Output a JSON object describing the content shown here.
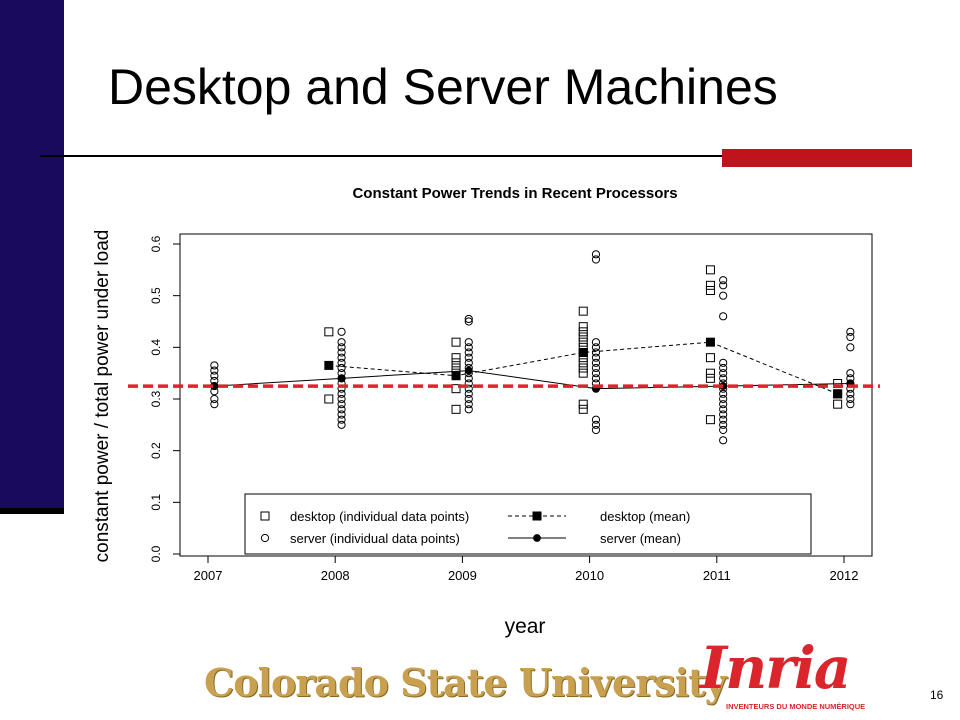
{
  "slide": {
    "title": "Desktop and Server Machines",
    "page_number": "16",
    "accent_color": "#c0141c",
    "sidebar_color": "#1a0a5e"
  },
  "logos": {
    "csu": "Colorado State University",
    "inria": "Inria",
    "inria_tagline": "INVENTEURS DU MONDE NUMÉRIQUE"
  },
  "chart_data": {
    "type": "scatter",
    "title": "Constant Power Trends in Recent Processors",
    "xlabel": "year",
    "ylabel": "constant power / total power under load",
    "xlim": [
      2007,
      2012
    ],
    "ylim": [
      0,
      0.6
    ],
    "x_ticks": [
      "2007",
      "2008",
      "2009",
      "2010",
      "2011",
      "2012"
    ],
    "y_ticks": [
      "0.0",
      "0.1",
      "0.2",
      "0.3",
      "0.4",
      "0.5",
      "0.6"
    ],
    "grid": false,
    "legend_placement": "bottom-center",
    "reference_line": {
      "y": 0.325,
      "color": "#d9252b"
    },
    "series": [
      {
        "name": "desktop (individual data points)",
        "marker": "open-square",
        "points": [
          [
            2007.95,
            0.43
          ],
          [
            2007.95,
            0.3
          ],
          [
            2008.95,
            0.41
          ],
          [
            2008.95,
            0.38
          ],
          [
            2008.95,
            0.37
          ],
          [
            2008.95,
            0.36
          ],
          [
            2008.95,
            0.35
          ],
          [
            2008.95,
            0.32
          ],
          [
            2008.95,
            0.28
          ],
          [
            2009.95,
            0.47
          ],
          [
            2009.95,
            0.44
          ],
          [
            2009.95,
            0.43
          ],
          [
            2009.95,
            0.42
          ],
          [
            2009.95,
            0.41
          ],
          [
            2009.95,
            0.4
          ],
          [
            2009.95,
            0.39
          ],
          [
            2009.95,
            0.38
          ],
          [
            2009.95,
            0.37
          ],
          [
            2009.95,
            0.36
          ],
          [
            2009.95,
            0.35
          ],
          [
            2009.95,
            0.29
          ],
          [
            2009.95,
            0.28
          ],
          [
            2010.95,
            0.55
          ],
          [
            2010.95,
            0.52
          ],
          [
            2010.95,
            0.51
          ],
          [
            2010.95,
            0.38
          ],
          [
            2010.95,
            0.35
          ],
          [
            2010.95,
            0.34
          ],
          [
            2010.95,
            0.26
          ],
          [
            2011.95,
            0.33
          ],
          [
            2011.95,
            0.31
          ],
          [
            2011.95,
            0.29
          ]
        ]
      },
      {
        "name": "server (individual data points)",
        "marker": "open-circle",
        "points": [
          [
            2007.05,
            0.365
          ],
          [
            2007.05,
            0.355
          ],
          [
            2007.05,
            0.345
          ],
          [
            2007.05,
            0.335
          ],
          [
            2007.05,
            0.325
          ],
          [
            2007.05,
            0.315
          ],
          [
            2007.05,
            0.3
          ],
          [
            2007.05,
            0.29
          ],
          [
            2008.05,
            0.43
          ],
          [
            2008.05,
            0.41
          ],
          [
            2008.05,
            0.4
          ],
          [
            2008.05,
            0.39
          ],
          [
            2008.05,
            0.38
          ],
          [
            2008.05,
            0.37
          ],
          [
            2008.05,
            0.36
          ],
          [
            2008.05,
            0.35
          ],
          [
            2008.05,
            0.34
          ],
          [
            2008.05,
            0.33
          ],
          [
            2008.05,
            0.32
          ],
          [
            2008.05,
            0.31
          ],
          [
            2008.05,
            0.3
          ],
          [
            2008.05,
            0.29
          ],
          [
            2008.05,
            0.28
          ],
          [
            2008.05,
            0.27
          ],
          [
            2008.05,
            0.26
          ],
          [
            2008.05,
            0.25
          ],
          [
            2009.05,
            0.455
          ],
          [
            2009.05,
            0.45
          ],
          [
            2009.05,
            0.41
          ],
          [
            2009.05,
            0.4
          ],
          [
            2009.05,
            0.39
          ],
          [
            2009.05,
            0.38
          ],
          [
            2009.05,
            0.37
          ],
          [
            2009.05,
            0.36
          ],
          [
            2009.05,
            0.35
          ],
          [
            2009.05,
            0.34
          ],
          [
            2009.05,
            0.33
          ],
          [
            2009.05,
            0.32
          ],
          [
            2009.05,
            0.31
          ],
          [
            2009.05,
            0.3
          ],
          [
            2009.05,
            0.29
          ],
          [
            2009.05,
            0.28
          ],
          [
            2010.05,
            0.58
          ],
          [
            2010.05,
            0.57
          ],
          [
            2010.05,
            0.41
          ],
          [
            2010.05,
            0.4
          ],
          [
            2010.05,
            0.39
          ],
          [
            2010.05,
            0.38
          ],
          [
            2010.05,
            0.37
          ],
          [
            2010.05,
            0.36
          ],
          [
            2010.05,
            0.35
          ],
          [
            2010.05,
            0.34
          ],
          [
            2010.05,
            0.33
          ],
          [
            2010.05,
            0.32
          ],
          [
            2010.05,
            0.26
          ],
          [
            2010.05,
            0.25
          ],
          [
            2010.05,
            0.24
          ],
          [
            2011.05,
            0.53
          ],
          [
            2011.05,
            0.52
          ],
          [
            2011.05,
            0.5
          ],
          [
            2011.05,
            0.46
          ],
          [
            2011.05,
            0.37
          ],
          [
            2011.05,
            0.36
          ],
          [
            2011.05,
            0.35
          ],
          [
            2011.05,
            0.34
          ],
          [
            2011.05,
            0.33
          ],
          [
            2011.05,
            0.32
          ],
          [
            2011.05,
            0.31
          ],
          [
            2011.05,
            0.3
          ],
          [
            2011.05,
            0.29
          ],
          [
            2011.05,
            0.28
          ],
          [
            2011.05,
            0.27
          ],
          [
            2011.05,
            0.26
          ],
          [
            2011.05,
            0.25
          ],
          [
            2011.05,
            0.24
          ],
          [
            2011.05,
            0.22
          ],
          [
            2012.05,
            0.43
          ],
          [
            2012.05,
            0.42
          ],
          [
            2012.05,
            0.4
          ],
          [
            2012.05,
            0.35
          ],
          [
            2012.05,
            0.34
          ],
          [
            2012.05,
            0.33
          ],
          [
            2012.05,
            0.32
          ],
          [
            2012.05,
            0.31
          ],
          [
            2012.05,
            0.3
          ],
          [
            2012.05,
            0.29
          ]
        ]
      },
      {
        "name": "desktop (mean)",
        "marker": "filled-square",
        "line": "dashed",
        "points": [
          [
            2007.95,
            0.365
          ],
          [
            2008.95,
            0.345
          ],
          [
            2009.95,
            0.39
          ],
          [
            2010.95,
            0.41
          ],
          [
            2011.95,
            0.31
          ]
        ]
      },
      {
        "name": "server (mean)",
        "marker": "filled-circle",
        "line": "solid",
        "points": [
          [
            2007.05,
            0.325
          ],
          [
            2008.05,
            0.34
          ],
          [
            2009.05,
            0.355
          ],
          [
            2010.05,
            0.32
          ],
          [
            2011.05,
            0.325
          ],
          [
            2012.05,
            0.33
          ]
        ]
      }
    ]
  }
}
